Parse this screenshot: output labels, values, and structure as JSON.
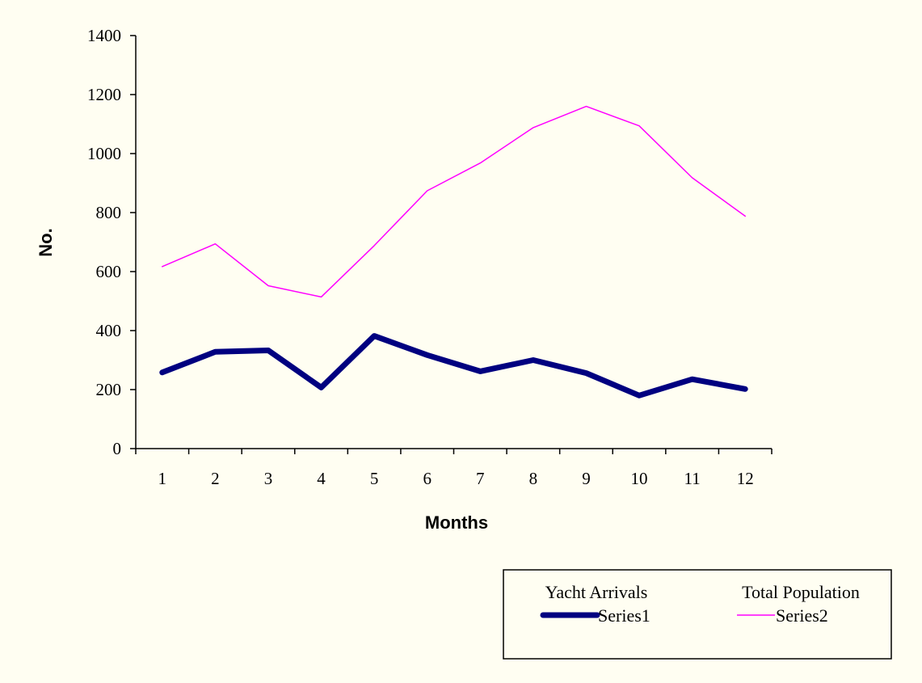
{
  "chart_data": {
    "type": "line",
    "title": "",
    "xlabel": "Months",
    "ylabel": "No.",
    "x": [
      1,
      2,
      3,
      4,
      5,
      6,
      7,
      8,
      9,
      10,
      11,
      12
    ],
    "ylim": [
      0,
      1400
    ],
    "yticks": [
      0,
      200,
      400,
      600,
      800,
      1000,
      1200,
      1400
    ],
    "grid": false,
    "legend_position": "bottom-right",
    "series": [
      {
        "name": "Series1",
        "legend_heading": "Yacht Arrivals",
        "color": "#000080",
        "values": [
          258,
          328,
          333,
          207,
          382,
          317,
          262,
          300,
          256,
          180,
          235,
          202
        ]
      },
      {
        "name": "Series2",
        "legend_heading": "Total Population",
        "color": "#FF00FF",
        "values": [
          617,
          694,
          552,
          514,
          688,
          874,
          968,
          1088,
          1160,
          1094,
          918,
          788
        ]
      }
    ]
  }
}
